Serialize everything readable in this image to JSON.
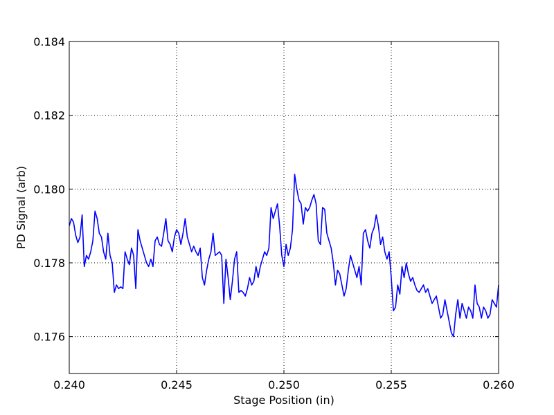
{
  "chart_data": {
    "type": "line",
    "xlabel": "Stage Position (in)",
    "ylabel": "PD Signal (arb)",
    "xlim": [
      0.24,
      0.26
    ],
    "ylim": [
      0.175,
      0.184
    ],
    "xticks": [
      "0.240",
      "0.245",
      "0.250",
      "0.255",
      "0.260"
    ],
    "yticks": [
      "0.176",
      "0.178",
      "0.180",
      "0.182",
      "0.184"
    ],
    "grid": true,
    "line_color": "#0000ff",
    "series": [
      {
        "x": [
          0.24,
          0.2401,
          0.2402,
          0.2403,
          0.2404,
          0.2405,
          0.2406,
          0.2407,
          0.2408,
          0.2409,
          0.241,
          0.2411,
          0.2412,
          0.2413,
          0.2414,
          0.2415,
          0.2416,
          0.2417,
          0.2418,
          0.2419,
          0.242,
          0.2421,
          0.2422,
          0.2423,
          0.2424,
          0.2425,
          0.2426,
          0.2427,
          0.2428,
          0.2429,
          0.243,
          0.2431,
          0.2432,
          0.2433,
          0.2434,
          0.2435,
          0.2436,
          0.2437,
          0.2438,
          0.2439,
          0.244,
          0.2441,
          0.2442,
          0.2443,
          0.2444,
          0.2445,
          0.2446,
          0.2447,
          0.2448,
          0.2449,
          0.245,
          0.2451,
          0.2452,
          0.2453,
          0.2454,
          0.2455,
          0.2456,
          0.2457,
          0.2458,
          0.2459,
          0.246,
          0.2461,
          0.2462,
          0.2463,
          0.2464,
          0.2465,
          0.2466,
          0.2467,
          0.2468,
          0.2469,
          0.247,
          0.2471,
          0.2472,
          0.2473,
          0.2474,
          0.2475,
          0.2476,
          0.2477,
          0.2478,
          0.2479,
          0.248,
          0.2481,
          0.2482,
          0.2483,
          0.2484,
          0.2485,
          0.2486,
          0.2487,
          0.2488,
          0.2489,
          0.249,
          0.2491,
          0.2492,
          0.2493,
          0.2494,
          0.2495,
          0.2496,
          0.2497,
          0.2498,
          0.2499,
          0.25,
          0.2501,
          0.2502,
          0.2503,
          0.2504,
          0.2505,
          0.2506,
          0.2507,
          0.2508,
          0.2509,
          0.251,
          0.2511,
          0.2512,
          0.2513,
          0.2514,
          0.2515,
          0.2516,
          0.2517,
          0.2518,
          0.2519,
          0.252,
          0.2521,
          0.2522,
          0.2523,
          0.2524,
          0.2525,
          0.2526,
          0.2527,
          0.2528,
          0.2529,
          0.253,
          0.2531,
          0.2532,
          0.2533,
          0.2534,
          0.2535,
          0.2536,
          0.2537,
          0.2538,
          0.2539,
          0.254,
          0.2541,
          0.2542,
          0.2543,
          0.2544,
          0.2545,
          0.2546,
          0.2547,
          0.2548,
          0.2549,
          0.255,
          0.2551,
          0.2552,
          0.2553,
          0.2554,
          0.2555,
          0.2556,
          0.2557,
          0.2558,
          0.2559,
          0.256,
          0.2561,
          0.2562,
          0.2563,
          0.2564,
          0.2565,
          0.2566,
          0.2567,
          0.2568,
          0.2569,
          0.257,
          0.2571,
          0.2572,
          0.2573,
          0.2574,
          0.2575,
          0.2576,
          0.2577,
          0.2578,
          0.2579,
          0.258,
          0.2581,
          0.2582,
          0.2583,
          0.2584,
          0.2585,
          0.2586,
          0.2587,
          0.2588,
          0.2589,
          0.259,
          0.2591,
          0.2592,
          0.2593,
          0.2594,
          0.2595,
          0.2596,
          0.2597,
          0.2598,
          0.2599,
          0.26
        ],
        "y": [
          0.179,
          0.1792,
          0.1791,
          0.17875,
          0.17855,
          0.1787,
          0.1793,
          0.1779,
          0.1782,
          0.1781,
          0.1783,
          0.1786,
          0.1794,
          0.1792,
          0.1788,
          0.1787,
          0.1783,
          0.1781,
          0.1788,
          0.1782,
          0.178,
          0.1772,
          0.1774,
          0.1773,
          0.17735,
          0.1773,
          0.1783,
          0.1781,
          0.17795,
          0.1784,
          0.1782,
          0.1773,
          0.1789,
          0.1786,
          0.1784,
          0.1782,
          0.178,
          0.1779,
          0.1781,
          0.1779,
          0.1786,
          0.1787,
          0.1785,
          0.17845,
          0.1788,
          0.1792,
          0.1786,
          0.1785,
          0.1783,
          0.1787,
          0.1789,
          0.1788,
          0.1785,
          0.1788,
          0.1792,
          0.1787,
          0.1785,
          0.1783,
          0.17845,
          0.1783,
          0.1782,
          0.1784,
          0.1776,
          0.1774,
          0.1778,
          0.1781,
          0.1783,
          0.1788,
          0.1782,
          0.17825,
          0.1783,
          0.1782,
          0.1769,
          0.1781,
          0.1776,
          0.177,
          0.1775,
          0.1781,
          0.1783,
          0.1772,
          0.17725,
          0.1772,
          0.1771,
          0.1773,
          0.1776,
          0.1774,
          0.1775,
          0.1779,
          0.1776,
          0.1779,
          0.1781,
          0.1783,
          0.1782,
          0.1784,
          0.1795,
          0.1792,
          0.1794,
          0.1796,
          0.179,
          0.1782,
          0.1779,
          0.1785,
          0.1782,
          0.1784,
          0.1789,
          0.1804,
          0.18,
          0.1797,
          0.1796,
          0.17905,
          0.1795,
          0.1794,
          0.1795,
          0.1797,
          0.17985,
          0.1796,
          0.1786,
          0.1785,
          0.1795,
          0.17945,
          0.1788,
          0.1786,
          0.1784,
          0.178,
          0.1774,
          0.1778,
          0.1777,
          0.1774,
          0.1771,
          0.1773,
          0.1778,
          0.1782,
          0.178,
          0.1778,
          0.1776,
          0.1779,
          0.1774,
          0.1788,
          0.1789,
          0.1786,
          0.1784,
          0.1788,
          0.17895,
          0.1793,
          0.179,
          0.1785,
          0.1787,
          0.1783,
          0.1781,
          0.1783,
          0.1776,
          0.1767,
          0.1768,
          0.1774,
          0.17715,
          0.1779,
          0.1776,
          0.178,
          0.1777,
          0.1775,
          0.1776,
          0.1774,
          0.17725,
          0.1772,
          0.1773,
          0.1774,
          0.1772,
          0.1773,
          0.1771,
          0.1769,
          0.177,
          0.1771,
          0.1768,
          0.1765,
          0.1766,
          0.177,
          0.1767,
          0.1764,
          0.1761,
          0.176,
          0.1766,
          0.177,
          0.1765,
          0.1769,
          0.1767,
          0.1765,
          0.1768,
          0.1767,
          0.1765,
          0.1774,
          0.1769,
          0.1768,
          0.1765,
          0.1768,
          0.1767,
          0.1765,
          0.1766,
          0.177,
          0.1769,
          0.1768,
          0.1774
        ]
      }
    ]
  }
}
